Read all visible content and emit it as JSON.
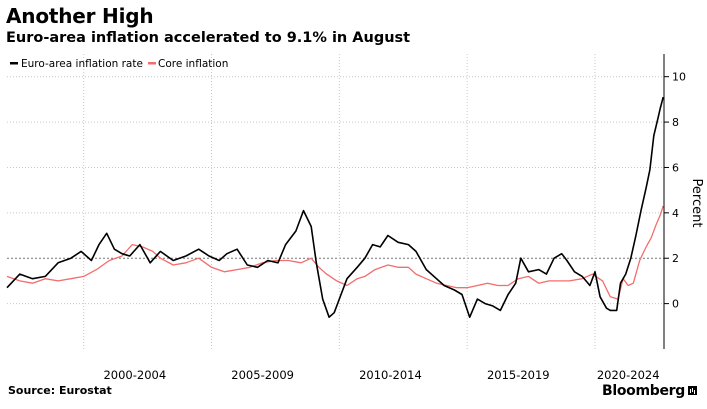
{
  "header": {
    "title": "Another High",
    "subtitle": "Euro-area inflation accelerated to 9.1% in August"
  },
  "footer": {
    "source": "Source: Eurostat",
    "brand": "Bloomberg"
  },
  "colors": {
    "headline": "#000000",
    "core": "#f26d6d",
    "grid": "#c8c8c8",
    "axis": "#000000"
  },
  "chart_data": {
    "type": "line",
    "title": "Another High",
    "subtitle": "Euro-area inflation accelerated to 9.1% in August",
    "xlabel": "",
    "ylabel": "Percent",
    "xlim": [
      1997.0,
      2022.7
    ],
    "ylim": [
      -2,
      11
    ],
    "yticks": [
      0,
      2,
      4,
      6,
      8,
      10
    ],
    "reference_line": 2,
    "xticks": [
      {
        "x": 2002,
        "label": "2000-2004"
      },
      {
        "x": 2007,
        "label": "2005-2009"
      },
      {
        "x": 2012,
        "label": "2010-2014"
      },
      {
        "x": 2017,
        "label": "2015-2019"
      },
      {
        "x": 2021.3,
        "label": "2020-2024"
      }
    ],
    "xgrid": [
      2000,
      2005,
      2010,
      2015,
      2020
    ],
    "legend": {
      "position": "top-left",
      "entries": [
        "Euro-area inflation rate",
        "Core inflation"
      ]
    },
    "series": [
      {
        "name": "Euro-area inflation rate",
        "color": "#000000",
        "points": [
          [
            1997.0,
            0.7
          ],
          [
            1997.5,
            1.3
          ],
          [
            1998.0,
            1.1
          ],
          [
            1998.5,
            1.2
          ],
          [
            1999.0,
            1.8
          ],
          [
            1999.5,
            2.0
          ],
          [
            1999.9,
            2.3
          ],
          [
            2000.3,
            1.9
          ],
          [
            2000.6,
            2.6
          ],
          [
            2000.9,
            3.1
          ],
          [
            2001.2,
            2.4
          ],
          [
            2001.5,
            2.2
          ],
          [
            2001.8,
            2.1
          ],
          [
            2002.2,
            2.6
          ],
          [
            2002.6,
            1.8
          ],
          [
            2003.0,
            2.3
          ],
          [
            2003.5,
            1.9
          ],
          [
            2004.0,
            2.1
          ],
          [
            2004.5,
            2.4
          ],
          [
            2004.9,
            2.1
          ],
          [
            2005.3,
            1.9
          ],
          [
            2005.6,
            2.2
          ],
          [
            2006.0,
            2.4
          ],
          [
            2006.4,
            1.7
          ],
          [
            2006.8,
            1.6
          ],
          [
            2007.2,
            1.9
          ],
          [
            2007.6,
            1.8
          ],
          [
            2007.9,
            2.6
          ],
          [
            2008.3,
            3.2
          ],
          [
            2008.6,
            4.1
          ],
          [
            2008.9,
            3.4
          ],
          [
            2009.1,
            1.8
          ],
          [
            2009.35,
            0.2
          ],
          [
            2009.6,
            -0.6
          ],
          [
            2009.8,
            -0.4
          ],
          [
            2010.0,
            0.2
          ],
          [
            2010.3,
            1.1
          ],
          [
            2010.7,
            1.6
          ],
          [
            2011.0,
            2.0
          ],
          [
            2011.3,
            2.6
          ],
          [
            2011.6,
            2.5
          ],
          [
            2011.9,
            3.0
          ],
          [
            2012.3,
            2.7
          ],
          [
            2012.7,
            2.6
          ],
          [
            2013.0,
            2.3
          ],
          [
            2013.4,
            1.5
          ],
          [
            2013.8,
            1.1
          ],
          [
            2014.1,
            0.8
          ],
          [
            2014.5,
            0.6
          ],
          [
            2014.8,
            0.4
          ],
          [
            2015.1,
            -0.6
          ],
          [
            2015.4,
            0.2
          ],
          [
            2015.7,
            0.0
          ],
          [
            2016.0,
            -0.1
          ],
          [
            2016.3,
            -0.3
          ],
          [
            2016.6,
            0.4
          ],
          [
            2016.9,
            0.9
          ],
          [
            2017.1,
            2.0
          ],
          [
            2017.4,
            1.4
          ],
          [
            2017.8,
            1.5
          ],
          [
            2018.1,
            1.3
          ],
          [
            2018.4,
            2.0
          ],
          [
            2018.7,
            2.2
          ],
          [
            2018.9,
            1.9
          ],
          [
            2019.2,
            1.4
          ],
          [
            2019.5,
            1.2
          ],
          [
            2019.8,
            0.8
          ],
          [
            2020.0,
            1.4
          ],
          [
            2020.2,
            0.3
          ],
          [
            2020.45,
            -0.2
          ],
          [
            2020.6,
            -0.3
          ],
          [
            2020.85,
            -0.3
          ],
          [
            2021.0,
            0.9
          ],
          [
            2021.2,
            1.3
          ],
          [
            2021.4,
            2.0
          ],
          [
            2021.6,
            3.0
          ],
          [
            2021.8,
            4.1
          ],
          [
            2022.0,
            5.1
          ],
          [
            2022.15,
            5.9
          ],
          [
            2022.3,
            7.4
          ],
          [
            2022.45,
            8.1
          ],
          [
            2022.55,
            8.6
          ],
          [
            2022.62,
            8.9
          ],
          [
            2022.67,
            9.1
          ]
        ]
      },
      {
        "name": "Core inflation",
        "color": "#f26d6d",
        "points": [
          [
            1997.0,
            1.2
          ],
          [
            1997.5,
            1.0
          ],
          [
            1998.0,
            0.9
          ],
          [
            1998.5,
            1.1
          ],
          [
            1999.0,
            1.0
          ],
          [
            1999.5,
            1.1
          ],
          [
            2000.0,
            1.2
          ],
          [
            2000.5,
            1.5
          ],
          [
            2001.0,
            1.9
          ],
          [
            2001.5,
            2.1
          ],
          [
            2001.9,
            2.6
          ],
          [
            2002.3,
            2.5
          ],
          [
            2002.7,
            2.3
          ],
          [
            2003.0,
            2.0
          ],
          [
            2003.5,
            1.7
          ],
          [
            2004.0,
            1.8
          ],
          [
            2004.5,
            2.0
          ],
          [
            2005.0,
            1.6
          ],
          [
            2005.5,
            1.4
          ],
          [
            2006.0,
            1.5
          ],
          [
            2006.5,
            1.6
          ],
          [
            2007.0,
            1.8
          ],
          [
            2007.5,
            1.9
          ],
          [
            2008.0,
            1.9
          ],
          [
            2008.5,
            1.8
          ],
          [
            2008.9,
            2.0
          ],
          [
            2009.2,
            1.6
          ],
          [
            2009.5,
            1.3
          ],
          [
            2009.9,
            1.0
          ],
          [
            2010.3,
            0.8
          ],
          [
            2010.7,
            1.1
          ],
          [
            2011.0,
            1.2
          ],
          [
            2011.4,
            1.5
          ],
          [
            2011.9,
            1.7
          ],
          [
            2012.3,
            1.6
          ],
          [
            2012.7,
            1.6
          ],
          [
            2013.0,
            1.3
          ],
          [
            2013.4,
            1.1
          ],
          [
            2013.8,
            0.9
          ],
          [
            2014.2,
            0.8
          ],
          [
            2014.6,
            0.7
          ],
          [
            2015.0,
            0.7
          ],
          [
            2015.4,
            0.8
          ],
          [
            2015.8,
            0.9
          ],
          [
            2016.2,
            0.8
          ],
          [
            2016.6,
            0.8
          ],
          [
            2017.0,
            1.1
          ],
          [
            2017.4,
            1.2
          ],
          [
            2017.8,
            0.9
          ],
          [
            2018.2,
            1.0
          ],
          [
            2018.6,
            1.0
          ],
          [
            2019.0,
            1.0
          ],
          [
            2019.5,
            1.1
          ],
          [
            2019.9,
            1.3
          ],
          [
            2020.3,
            1.0
          ],
          [
            2020.6,
            0.3
          ],
          [
            2020.9,
            0.2
          ],
          [
            2021.1,
            1.1
          ],
          [
            2021.3,
            0.8
          ],
          [
            2021.5,
            0.9
          ],
          [
            2021.75,
            1.9
          ],
          [
            2022.0,
            2.5
          ],
          [
            2022.2,
            2.9
          ],
          [
            2022.4,
            3.5
          ],
          [
            2022.55,
            3.9
          ],
          [
            2022.67,
            4.3
          ]
        ]
      }
    ]
  }
}
